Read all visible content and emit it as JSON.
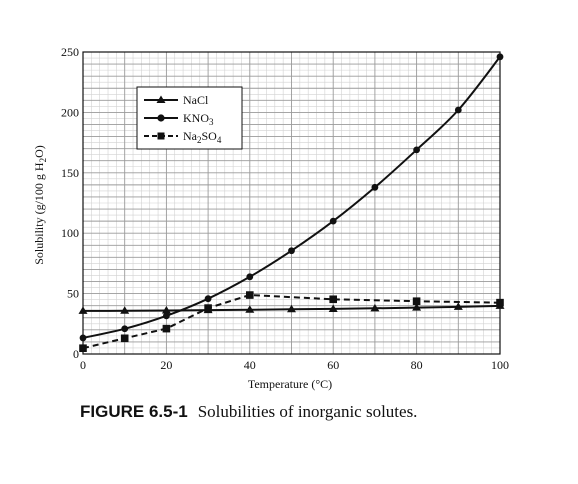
{
  "chart_data": {
    "type": "line",
    "xlabel": "Temperature (°C)",
    "ylabel": "Solubility (g/100 g H₂O)",
    "xlim": [
      0,
      100
    ],
    "ylim": [
      0,
      250
    ],
    "x_ticks": [
      0,
      20,
      40,
      60,
      80,
      100
    ],
    "y_ticks": [
      0,
      50,
      100,
      150,
      200,
      250
    ],
    "grid": true,
    "legend_position": "top-left",
    "series": [
      {
        "name": "NaCl",
        "marker": "triangle",
        "line_style": "solid",
        "x": [
          0,
          10,
          20,
          30,
          40,
          50,
          60,
          70,
          80,
          90,
          100
        ],
        "values": [
          35.7,
          35.8,
          36.0,
          36.3,
          36.6,
          37.0,
          37.3,
          37.8,
          38.4,
          39.0,
          39.8
        ]
      },
      {
        "name": "KNO₃",
        "marker": "circle",
        "line_style": "solid",
        "x": [
          0,
          10,
          20,
          30,
          40,
          50,
          60,
          70,
          80,
          90,
          100
        ],
        "values": [
          13.3,
          20.9,
          31.6,
          45.8,
          63.9,
          85.5,
          110.0,
          138.0,
          169.0,
          202.0,
          246.0
        ]
      },
      {
        "name": "Na₂SO₄",
        "marker": "square",
        "line_style": "dashed",
        "x": [
          0,
          10,
          20,
          30,
          40,
          60,
          80,
          100
        ],
        "values": [
          4.8,
          13.0,
          21.0,
          38.0,
          48.8,
          45.3,
          43.7,
          42.5
        ]
      }
    ]
  },
  "legend": {
    "nacl": "NaCl",
    "kno3_base": "KNO",
    "kno3_sub": "3",
    "na2so4_na": "Na",
    "na2so4_sub1": "2",
    "na2so4_so": "SO",
    "na2so4_sub2": "4"
  },
  "ylabel": {
    "main": "Solubility (g/100 g H",
    "sub": "2",
    "end": "O)"
  },
  "caption": {
    "label": "FIGURE 6.5-1",
    "text": "Solubilities of inorganic solutes."
  }
}
